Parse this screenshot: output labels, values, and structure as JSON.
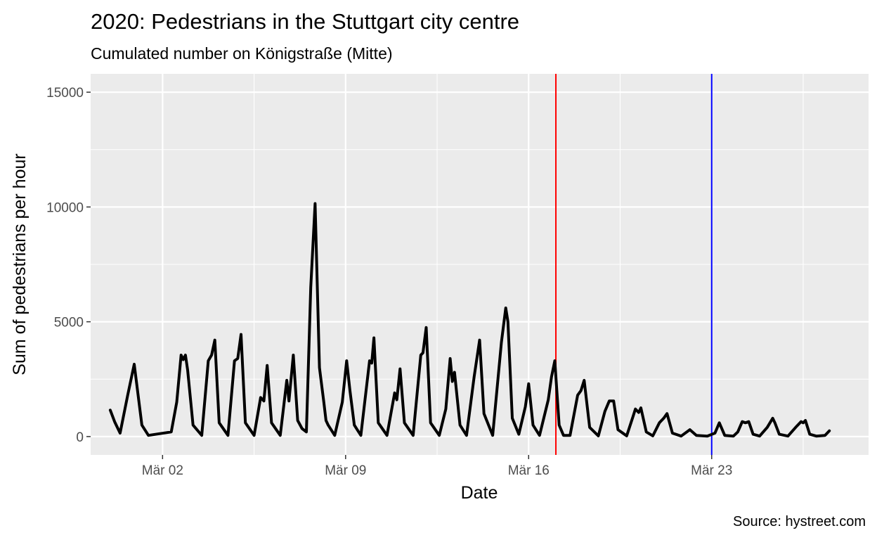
{
  "chart_data": {
    "type": "line",
    "title": "2020: Pedestrians in the Stuttgart city centre",
    "subtitle": "Cumulated number on Königstraße (Mitte)",
    "xlabel": "Date",
    "ylabel": "Sum of pedestrians per hour",
    "caption": "Source: hystreet.com",
    "x_ticks": [
      "Mär 02",
      "Mär 09",
      "Mär 16",
      "Mär 23"
    ],
    "y_ticks": [
      "0",
      "5000",
      "10000",
      "15000"
    ],
    "xlim": [
      "2020-02-28T06:00",
      "2020-03-29T00:00"
    ],
    "ylim": [
      -800,
      15800
    ],
    "grid": true,
    "background": "#ebebeb",
    "line_color": "#000000",
    "vlines": [
      {
        "date": "2020-03-17T01:00",
        "color": "#ff0000"
      },
      {
        "date": "2020-03-23T00:00",
        "color": "#0000ff"
      }
    ],
    "series": [
      {
        "points": [
          [
            "2020-02-29T00:00",
            1150
          ],
          [
            "2020-02-29T04:00",
            650
          ],
          [
            "2020-02-29T09:00",
            150
          ],
          [
            "2020-02-29T16:00",
            1800
          ],
          [
            "2020-02-29T22:00",
            3150
          ],
          [
            "2020-03-01T05:00",
            500
          ],
          [
            "2020-03-01T11:00",
            50
          ],
          [
            "2020-03-02T08:00",
            200
          ],
          [
            "2020-03-02T13:00",
            1500
          ],
          [
            "2020-03-02T17:00",
            3550
          ],
          [
            "2020-03-02T19:00",
            3350
          ],
          [
            "2020-03-02T21:00",
            3550
          ],
          [
            "2020-03-02T23:00",
            2900
          ],
          [
            "2020-03-03T04:00",
            500
          ],
          [
            "2020-03-03T12:00",
            50
          ],
          [
            "2020-03-03T18:00",
            3300
          ],
          [
            "2020-03-03T21:00",
            3550
          ],
          [
            "2020-03-04T00:00",
            4200
          ],
          [
            "2020-03-04T04:00",
            600
          ],
          [
            "2020-03-04T12:00",
            50
          ],
          [
            "2020-03-04T18:00",
            3300
          ],
          [
            "2020-03-04T21:00",
            3400
          ],
          [
            "2020-03-05T00:00",
            4450
          ],
          [
            "2020-03-05T04:00",
            600
          ],
          [
            "2020-03-05T12:00",
            50
          ],
          [
            "2020-03-05T18:00",
            1700
          ],
          [
            "2020-03-05T21:00",
            1550
          ],
          [
            "2020-03-06T00:00",
            3100
          ],
          [
            "2020-03-06T04:00",
            600
          ],
          [
            "2020-03-06T12:00",
            50
          ],
          [
            "2020-03-06T18:00",
            2450
          ],
          [
            "2020-03-06T20:00",
            1550
          ],
          [
            "2020-03-07T00:00",
            3550
          ],
          [
            "2020-03-07T04:00",
            700
          ],
          [
            "2020-03-07T08:00",
            350
          ],
          [
            "2020-03-07T12:00",
            200
          ],
          [
            "2020-03-07T16:00",
            6500
          ],
          [
            "2020-03-07T20:00",
            10150
          ],
          [
            "2020-03-08T00:00",
            3000
          ],
          [
            "2020-03-08T04:00",
            1500
          ],
          [
            "2020-03-08T06:00",
            700
          ],
          [
            "2020-03-08T08:00",
            500
          ],
          [
            "2020-03-08T14:00",
            50
          ],
          [
            "2020-03-08T21:00",
            1500
          ],
          [
            "2020-03-09T01:00",
            3300
          ],
          [
            "2020-03-09T04:00",
            2000
          ],
          [
            "2020-03-09T08:00",
            500
          ],
          [
            "2020-03-09T14:00",
            50
          ],
          [
            "2020-03-09T22:00",
            3300
          ],
          [
            "2020-03-10T00:00",
            3200
          ],
          [
            "2020-03-10T02:00",
            4300
          ],
          [
            "2020-03-10T06:00",
            600
          ],
          [
            "2020-03-10T14:00",
            50
          ],
          [
            "2020-03-10T21:00",
            1900
          ],
          [
            "2020-03-10T23:00",
            1600
          ],
          [
            "2020-03-11T02:00",
            2950
          ],
          [
            "2020-03-11T06:00",
            600
          ],
          [
            "2020-03-11T14:00",
            50
          ],
          [
            "2020-03-11T21:00",
            3550
          ],
          [
            "2020-03-11T23:00",
            3650
          ],
          [
            "2020-03-12T02:00",
            4750
          ],
          [
            "2020-03-12T06:00",
            600
          ],
          [
            "2020-03-12T14:00",
            50
          ],
          [
            "2020-03-12T20:00",
            1200
          ],
          [
            "2020-03-13T00:00",
            3400
          ],
          [
            "2020-03-13T02:00",
            2400
          ],
          [
            "2020-03-13T04:00",
            2800
          ],
          [
            "2020-03-13T09:00",
            500
          ],
          [
            "2020-03-13T15:00",
            50
          ],
          [
            "2020-03-13T22:00",
            2600
          ],
          [
            "2020-03-14T03:00",
            4200
          ],
          [
            "2020-03-14T07:00",
            1000
          ],
          [
            "2020-03-14T15:00",
            50
          ],
          [
            "2020-03-14T23:00",
            4100
          ],
          [
            "2020-03-15T03:00",
            5600
          ],
          [
            "2020-03-15T05:00",
            5000
          ],
          [
            "2020-03-15T09:00",
            800
          ],
          [
            "2020-03-15T15:00",
            100
          ],
          [
            "2020-03-15T21:00",
            1300
          ],
          [
            "2020-03-16T00:00",
            2300
          ],
          [
            "2020-03-16T04:00",
            500
          ],
          [
            "2020-03-16T10:00",
            50
          ],
          [
            "2020-03-16T18:00",
            1600
          ],
          [
            "2020-03-16T21:00",
            2600
          ],
          [
            "2020-03-17T00:00",
            3300
          ],
          [
            "2020-03-17T04:00",
            500
          ],
          [
            "2020-03-17T08:00",
            50
          ],
          [
            "2020-03-17T14:00",
            50
          ],
          [
            "2020-03-17T21:00",
            1800
          ],
          [
            "2020-03-18T00:00",
            2000
          ],
          [
            "2020-03-18T03:00",
            2450
          ],
          [
            "2020-03-18T08:00",
            400
          ],
          [
            "2020-03-18T16:00",
            30
          ],
          [
            "2020-03-18T22:00",
            1100
          ],
          [
            "2020-03-19T02:00",
            1550
          ],
          [
            "2020-03-19T06:00",
            1550
          ],
          [
            "2020-03-19T10:00",
            300
          ],
          [
            "2020-03-19T18:00",
            30
          ],
          [
            "2020-03-20T00:00",
            900
          ],
          [
            "2020-03-20T02:00",
            1200
          ],
          [
            "2020-03-20T05:00",
            1050
          ],
          [
            "2020-03-20T07:00",
            1250
          ],
          [
            "2020-03-20T12:00",
            200
          ],
          [
            "2020-03-20T18:00",
            30
          ],
          [
            "2020-03-21T00:00",
            600
          ],
          [
            "2020-03-21T04:00",
            800
          ],
          [
            "2020-03-21T07:00",
            1000
          ],
          [
            "2020-03-21T12:00",
            150
          ],
          [
            "2020-03-21T20:00",
            20
          ],
          [
            "2020-03-22T04:00",
            300
          ],
          [
            "2020-03-22T10:00",
            50
          ],
          [
            "2020-03-22T20:00",
            20
          ],
          [
            "2020-03-23T03:00",
            150
          ],
          [
            "2020-03-23T07:00",
            600
          ],
          [
            "2020-03-23T12:00",
            50
          ],
          [
            "2020-03-23T20:00",
            20
          ],
          [
            "2020-03-24T00:00",
            200
          ],
          [
            "2020-03-24T04:00",
            650
          ],
          [
            "2020-03-24T07:00",
            600
          ],
          [
            "2020-03-24T10:00",
            650
          ],
          [
            "2020-03-24T14:00",
            100
          ],
          [
            "2020-03-24T20:00",
            20
          ],
          [
            "2020-03-25T03:00",
            400
          ],
          [
            "2020-03-25T08:00",
            800
          ],
          [
            "2020-03-25T10:00",
            600
          ],
          [
            "2020-03-25T14:00",
            100
          ],
          [
            "2020-03-25T22:00",
            20
          ],
          [
            "2020-03-26T06:00",
            450
          ],
          [
            "2020-03-26T10:00",
            650
          ],
          [
            "2020-03-26T12:00",
            600
          ],
          [
            "2020-03-26T14:00",
            700
          ],
          [
            "2020-03-26T18:00",
            100
          ],
          [
            "2020-03-27T00:00",
            20
          ],
          [
            "2020-03-27T08:00",
            50
          ],
          [
            "2020-03-27T12:00",
            250
          ]
        ]
      }
    ]
  }
}
